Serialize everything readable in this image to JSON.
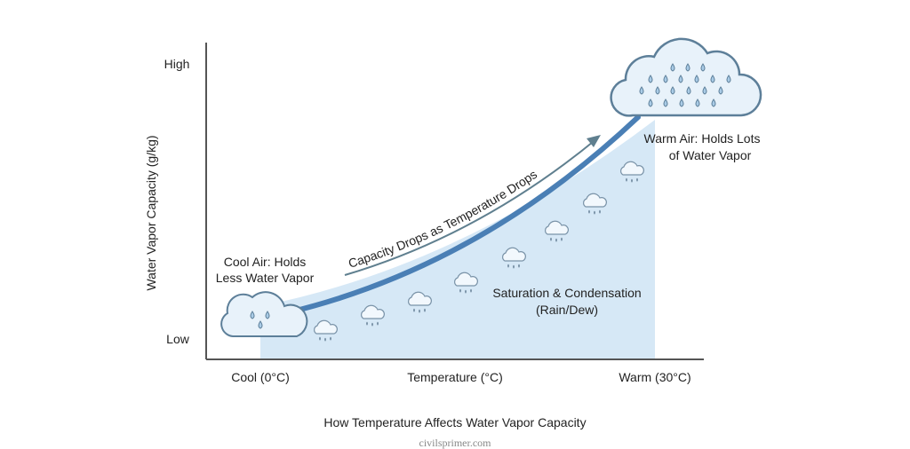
{
  "axes": {
    "y_label": "Water Vapor Capacity (g/kg)",
    "y_high": "High",
    "y_low": "Low",
    "x_label": "Temperature (°C)",
    "x_left": "Cool (0°C)",
    "x_right": "Warm (30°C)"
  },
  "annotations": {
    "cool_line1": "Cool Air: Holds",
    "cool_line2": "Less Water Vapor",
    "warm_line1": "Warm Air: Holds Lots",
    "warm_line2": "of Water Vapor",
    "arrow_text": "Capacity Drops as Temperature Drops",
    "region_line1": "Saturation & Condensation",
    "region_line2": "(Rain/Dew)"
  },
  "caption": "How Temperature Affects Water Vapor Capacity",
  "watermark": "civilsprimer.com",
  "colors": {
    "curve": "#4a7fb5",
    "region": "#d6e8f6",
    "cloud_fill": "#e8f2fa",
    "cloud_stroke": "#5d7f99",
    "arrow": "#5f7f8f"
  }
}
